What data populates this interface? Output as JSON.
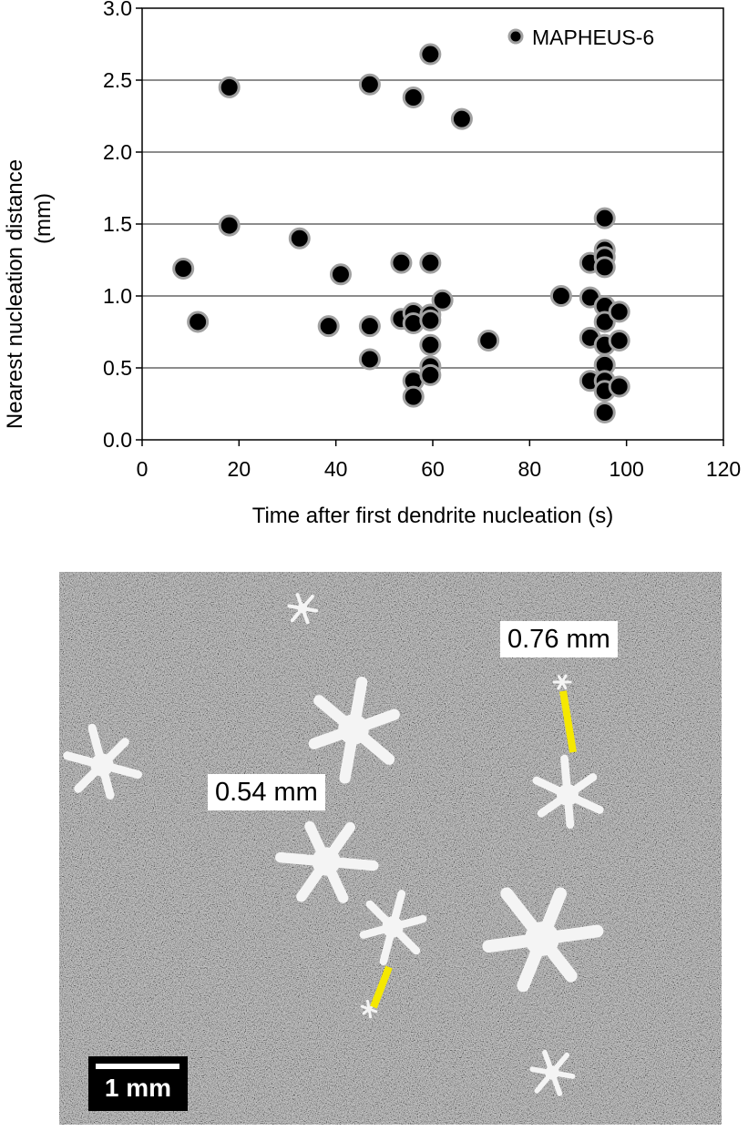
{
  "chart_data": {
    "type": "scatter",
    "title": "",
    "xlabel": "Time after first dendrite nucleation (s)",
    "ylabel_line1": "Nearest nucleation distance",
    "ylabel_line2": "(mm)",
    "xlim": [
      0,
      120
    ],
    "ylim": [
      0,
      3.0
    ],
    "xticks": [
      "0",
      "20",
      "40",
      "60",
      "80",
      "100",
      "120"
    ],
    "yticks": [
      "0.0",
      "0.5",
      "1.0",
      "1.5",
      "2.0",
      "2.5",
      "3.0"
    ],
    "grid": "horizontal",
    "legend_position": "top-right",
    "series": [
      {
        "name": "MAPHEUS-6",
        "marker": "circle",
        "fill": "#000000",
        "edge": "#a0a0a0",
        "points": [
          [
            8.5,
            1.19
          ],
          [
            11.5,
            0.82
          ],
          [
            18,
            2.45
          ],
          [
            18,
            1.49
          ],
          [
            32.5,
            1.4
          ],
          [
            38.5,
            0.79
          ],
          [
            41,
            1.15
          ],
          [
            47,
            2.47
          ],
          [
            47,
            0.79
          ],
          [
            47,
            0.56
          ],
          [
            53.5,
            1.23
          ],
          [
            53.5,
            0.84
          ],
          [
            56,
            2.38
          ],
          [
            56,
            0.88
          ],
          [
            56,
            0.81
          ],
          [
            56,
            0.41
          ],
          [
            56,
            0.3
          ],
          [
            59.5,
            2.68
          ],
          [
            59.5,
            1.23
          ],
          [
            59.5,
            0.87
          ],
          [
            59.5,
            0.83
          ],
          [
            59.5,
            0.66
          ],
          [
            59.5,
            0.51
          ],
          [
            59.5,
            0.45
          ],
          [
            62,
            0.97
          ],
          [
            66,
            2.23
          ],
          [
            71.5,
            0.69
          ],
          [
            86.5,
            1.0
          ],
          [
            92.5,
            1.23
          ],
          [
            92.5,
            0.99
          ],
          [
            92.5,
            0.71
          ],
          [
            92.5,
            0.41
          ],
          [
            95.5,
            1.54
          ],
          [
            95.5,
            1.32
          ],
          [
            95.5,
            1.27
          ],
          [
            95.5,
            1.2
          ],
          [
            95.5,
            0.93
          ],
          [
            95.5,
            0.82
          ],
          [
            95.5,
            0.66
          ],
          [
            95.5,
            0.52
          ],
          [
            95.5,
            0.41
          ],
          [
            95.5,
            0.34
          ],
          [
            95.5,
            0.19
          ],
          [
            98.5,
            0.89
          ],
          [
            98.5,
            0.69
          ],
          [
            98.5,
            0.37
          ]
        ]
      }
    ]
  },
  "micrograph": {
    "labels": {
      "upper_distance": "0.76 mm",
      "lower_distance": "0.54 mm",
      "scale_bar": "1 mm"
    },
    "colors": {
      "background": "#6f6f6f",
      "crystal": "#f4f4f4",
      "measure_line": "#f5e800"
    }
  }
}
